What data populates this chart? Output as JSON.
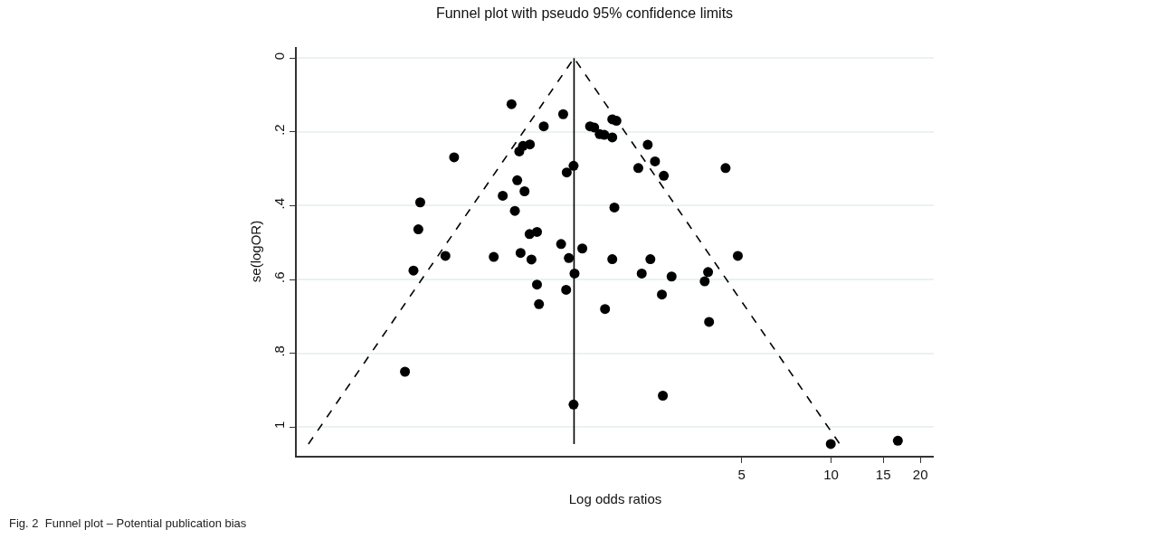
{
  "chart_data": {
    "type": "scatter",
    "title": "Funnel plot with pseudo 95% confidence limits",
    "xlabel": "Log odds ratios",
    "ylabel": "se(logOR)",
    "annotations": [
      "Fig. 2  Funnel plot – Potential publication bias"
    ],
    "log": "x",
    "grid": "y",
    "xlim": [
      0.158,
      22.2
    ],
    "xticks": [
      5,
      10,
      15,
      20
    ],
    "ylim": [
      1.078,
      -0.03
    ],
    "yticks": [
      {
        "value": 0,
        "label": "0"
      },
      {
        "value": 0.2,
        "label": ".2"
      },
      {
        "value": 0.4,
        "label": ".4"
      },
      {
        "value": 0.6,
        "label": ".6"
      },
      {
        "value": 0.8,
        "label": ".8"
      },
      {
        "value": 1,
        "label": "1"
      }
    ],
    "series": [
      {
        "color": "#000000",
        "marker": "circle",
        "x": [
          0.837,
          1.25,
          1.075,
          0.965,
          0.915,
          0.889,
          0.536,
          1.355,
          1.285,
          0.875,
          0.926,
          0.782,
          0.412,
          0.859,
          0.406,
          1.02,
          0.963,
          1.23,
          1.45,
          0.501,
          0.729,
          0.898,
          1.306,
          0.977,
          0.391,
          1.365,
          1.02,
          1.279,
          1.036,
          0.366,
          1.355,
          1.83,
          1.89,
          1.54,
          1.59,
          1.66,
          1.72,
          1.83,
          2.41,
          2.55,
          2.24,
          2.73,
          4.41,
          1.86,
          4.85,
          1.83,
          2.46,
          2.3,
          2.9,
          3.85,
          3.75,
          2.69,
          1.73,
          3.88,
          2.71,
          9.98,
          16.8
        ],
        "values": [
          0.125,
          0.152,
          0.185,
          0.234,
          0.238,
          0.253,
          0.269,
          0.292,
          0.31,
          0.331,
          0.361,
          0.373,
          0.391,
          0.414,
          0.464,
          0.471,
          0.477,
          0.504,
          0.516,
          0.536,
          0.539,
          0.528,
          0.542,
          0.546,
          0.576,
          0.584,
          0.614,
          0.628,
          0.667,
          0.85,
          0.939,
          0.166,
          0.17,
          0.185,
          0.188,
          0.206,
          0.208,
          0.215,
          0.235,
          0.28,
          0.298,
          0.319,
          0.298,
          0.405,
          0.536,
          0.545,
          0.545,
          0.584,
          0.592,
          0.58,
          0.605,
          0.641,
          0.68,
          0.715,
          0.915,
          1.046,
          1.037
        ]
      },
      {
        "type": "line",
        "color": "#000000",
        "marker": "none",
        "line_style": "dashed",
        "x": [
          0.173,
          1.36,
          10.7
        ],
        "values": [
          1.046,
          0,
          1.046
        ]
      },
      {
        "type": "line",
        "color": "#000000",
        "marker": "none",
        "line_style": "solid",
        "x": [
          1.36,
          1.36
        ],
        "values": [
          0,
          1.046
        ]
      }
    ]
  }
}
